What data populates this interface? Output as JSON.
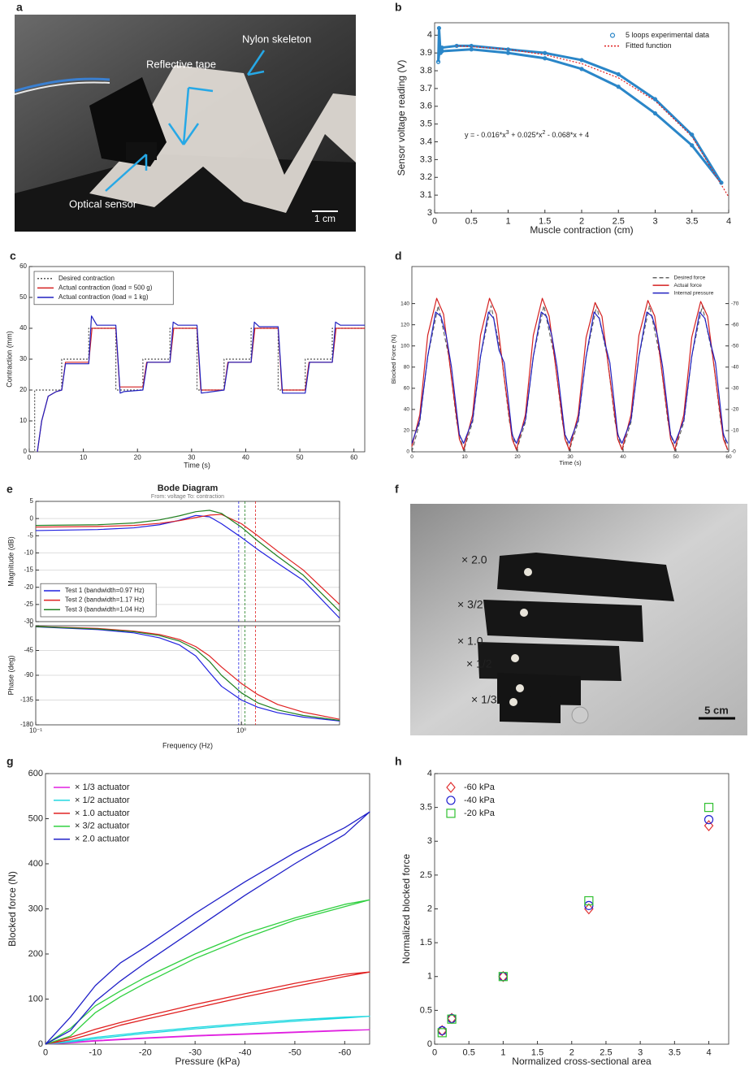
{
  "panels": [
    "a",
    "b",
    "c",
    "d",
    "e",
    "f",
    "g",
    "h"
  ],
  "photo_a": {
    "labels": [
      "Nylon skeleton",
      "Reflective tape",
      "Optical sensor"
    ],
    "scale_bar": "1 cm"
  },
  "photo_f": {
    "labels": [
      "× 2.0",
      "× 3/2",
      "× 1.0",
      "× 1/2",
      "× 1/3"
    ],
    "scale_bar": "5 cm"
  },
  "chart_data": [
    {
      "type": "line",
      "xlabel": "Muscle contraction (cm)",
      "ylabel": "Sensor voltage reading (V)",
      "xlim": [
        0,
        4
      ],
      "ylim": [
        3,
        4.07
      ],
      "xticks": [
        0,
        0.5,
        1,
        1.5,
        2,
        2.5,
        3,
        3.5,
        4
      ],
      "yticks": [
        3,
        3.1,
        3.2,
        3.3,
        3.4,
        3.5,
        3.6,
        3.7,
        3.8,
        3.9,
        4
      ],
      "legend": "top-right",
      "legend_frame": false,
      "annotation": [
        "y = - 0.016*x",
        "3",
        " + 0.025*x",
        "2",
        " - 0.068*x + 4"
      ],
      "series": [
        {
          "name": "5 loops experimental data",
          "color": "#2a86c8",
          "marker": "circle",
          "x": [
            0.05,
            0.06,
            0.08,
            0.1,
            0.3,
            0.5,
            1,
            1.5,
            2,
            2.5,
            3,
            3.5,
            3.9,
            3.5,
            3,
            2.5,
            2,
            1.5,
            1,
            0.5,
            0.1,
            0.07,
            0.05
          ],
          "values": [
            3.85,
            4.04,
            3.9,
            3.93,
            3.94,
            3.94,
            3.92,
            3.9,
            3.86,
            3.78,
            3.64,
            3.44,
            3.17,
            3.38,
            3.56,
            3.71,
            3.81,
            3.87,
            3.9,
            3.92,
            3.91,
            3.93,
            3.85
          ]
        },
        {
          "name": "Fitted function",
          "color": "#e02020",
          "linestyle": "dotted",
          "x": [
            0.3,
            0.5,
            1,
            1.5,
            2,
            2.5,
            3,
            3.5,
            4
          ],
          "values": [
            3.94,
            3.935,
            3.92,
            3.89,
            3.84,
            3.76,
            3.63,
            3.43,
            3.09
          ]
        }
      ]
    },
    {
      "type": "line",
      "xlabel": "Time (s)",
      "ylabel": "Contraction (mm)",
      "xlim": [
        0,
        62
      ],
      "ylim": [
        0,
        60
      ],
      "xticks": [
        0,
        10,
        20,
        30,
        40,
        50,
        60
      ],
      "yticks": [
        0,
        10,
        20,
        30,
        40,
        50,
        60
      ],
      "legend": "top-left",
      "legend_frame": true,
      "series": [
        {
          "name": "Desired contraction",
          "color": "#555555",
          "linestyle": "dotted",
          "x": [
            0,
            1,
            1,
            6,
            6,
            11,
            11,
            16,
            16,
            21,
            21,
            26,
            26,
            31,
            31,
            36,
            36,
            41,
            41,
            46,
            46,
            51,
            51,
            56,
            56,
            62
          ],
          "values": [
            0,
            0,
            20,
            20,
            30,
            30,
            40,
            40,
            20,
            20,
            30,
            30,
            40,
            40,
            20,
            20,
            30,
            30,
            40,
            40,
            20,
            20,
            30,
            30,
            40,
            40
          ]
        },
        {
          "name": "Actual contraction (load = 500 g)",
          "color": "#d42020",
          "x": [
            1.5,
            2.3,
            3.5,
            5,
            6,
            6.7,
            11,
            11.6,
            16,
            16.7,
            21,
            21.7,
            26,
            26.7,
            31,
            31.7,
            36,
            36.7,
            41,
            41.7,
            46,
            46.7,
            51,
            51.7,
            56,
            56.7,
            62
          ],
          "values": [
            0,
            10,
            18,
            19.5,
            20,
            29,
            29,
            40,
            40,
            21,
            21,
            29,
            29,
            40,
            40,
            20,
            20,
            29,
            29,
            40,
            40,
            20,
            20,
            29,
            29,
            40,
            40
          ]
        },
        {
          "name": "Actual contraction (load = 1 kg)",
          "color": "#2020c0",
          "x": [
            1.5,
            2.3,
            3.5,
            5,
            6,
            6.7,
            11,
            11.5,
            12.5,
            16,
            16.8,
            17.5,
            21,
            21.8,
            26,
            26.6,
            27.5,
            31,
            31.8,
            36,
            36.8,
            41,
            41.6,
            42.5,
            46,
            46.8,
            51,
            51.8,
            56,
            56.6,
            57.5,
            62
          ],
          "values": [
            0,
            10,
            18,
            19.5,
            20,
            28.5,
            28.5,
            44,
            41,
            41,
            19,
            19.5,
            20,
            29,
            29,
            42,
            41,
            41,
            19,
            20,
            29,
            29,
            42,
            40.5,
            40.5,
            19,
            19,
            29,
            29,
            42,
            41,
            41
          ]
        }
      ]
    },
    {
      "type": "line",
      "xlabel": "Time (s)",
      "ylabel": "Blocked Force (N)",
      "xlim": [
        0,
        60
      ],
      "ylim": [
        0,
        175
      ],
      "y2lim": [
        0,
        -87.5
      ],
      "xticks": [
        0,
        10,
        20,
        30,
        40,
        50,
        60
      ],
      "yticks": [
        0,
        20,
        40,
        60,
        80,
        100,
        120,
        140
      ],
      "y2ticks": [
        {
          "value": 0,
          "label": "-0"
        },
        -10,
        -20,
        -30,
        -40,
        -50,
        -60,
        -70
      ],
      "legend": "top-right",
      "legend_frame": false,
      "series": [
        {
          "name": "Desired force",
          "color": "#666666",
          "linestyle": "dashed",
          "x": [
            0,
            1.5,
            3,
            5,
            7,
            8.5,
            9.8,
            11.5,
            13,
            15,
            17,
            18.5,
            19.8,
            21.5,
            23,
            25,
            27,
            28.5,
            29.8,
            31.5,
            33,
            35,
            37,
            38.5,
            39.8,
            41.5,
            43,
            45,
            47,
            48.5,
            49.8,
            51.5,
            53,
            55,
            57,
            58.5,
            59.8
          ],
          "values": [
            0,
            28,
            90,
            138,
            90,
            28,
            1,
            28,
            90,
            138,
            90,
            28,
            1,
            28,
            90,
            138,
            90,
            28,
            1,
            28,
            90,
            138,
            90,
            28,
            1,
            28,
            90,
            138,
            90,
            28,
            1,
            28,
            90,
            138,
            90,
            28,
            1
          ]
        },
        {
          "name": "Actual force",
          "color": "#d42020",
          "x": [
            0,
            1.5,
            3,
            4.7,
            6,
            7.5,
            9,
            9.8,
            11.5,
            13,
            14.7,
            16,
            17.5,
            19,
            19.8,
            21.5,
            23,
            24.7,
            26,
            27.5,
            29,
            29.8,
            31.5,
            33,
            34.7,
            36,
            37.5,
            39,
            39.8,
            41.5,
            43,
            44.7,
            46,
            47.5,
            49,
            49.8,
            51.5,
            53,
            54.7,
            56,
            57.5,
            59,
            59.8
          ],
          "values": [
            5,
            35,
            110,
            145,
            130,
            70,
            12,
            2,
            35,
            110,
            145,
            130,
            70,
            12,
            2,
            35,
            110,
            145,
            128,
            70,
            12,
            2,
            35,
            108,
            141,
            128,
            70,
            12,
            2,
            35,
            110,
            143,
            128,
            70,
            12,
            2,
            35,
            108,
            142,
            128,
            70,
            12,
            2
          ]
        },
        {
          "name": "Internal pressure",
          "color": "#2020c0",
          "axis": "y2",
          "x": [
            0,
            1.5,
            3,
            4.5,
            5.5,
            6.5,
            7.5,
            9,
            9.8,
            11.5,
            13,
            14.5,
            15.5,
            16.5,
            17.5,
            19,
            19.8,
            21.5,
            23,
            24.5,
            25.5,
            26.5,
            27.5,
            29,
            29.8,
            31.5,
            33,
            34.5,
            35.5,
            36.5,
            37.5,
            39,
            39.8,
            41.5,
            43,
            44.5,
            45.5,
            46.5,
            47.5,
            49,
            49.8,
            51.5,
            53,
            54.5,
            55.5,
            56.5,
            57.5,
            59,
            59.8
          ],
          "values": [
            -4,
            -15,
            -45,
            -66,
            -64,
            -55,
            -40,
            -8,
            -4,
            -15,
            -45,
            -66,
            -63,
            -48,
            -42,
            -8,
            -4,
            -15,
            -45,
            -66,
            -64,
            -55,
            -40,
            -8,
            -4,
            -15,
            -45,
            -66,
            -63,
            -52,
            -42,
            -8,
            -4,
            -15,
            -45,
            -66,
            -64,
            -55,
            -40,
            -8,
            -4,
            -15,
            -45,
            -66,
            -63,
            -52,
            -42,
            -8,
            -4
          ]
        }
      ]
    },
    {
      "type": "line",
      "title": "Bode Diagram",
      "subtitle": "From: voltage  To: contraction",
      "ylabel": "Magnitude (dB)",
      "xscale": "log",
      "grid": true,
      "xlim": [
        0.1,
        3
      ],
      "ylim": [
        -30,
        5
      ],
      "yticks": [
        -30,
        -25,
        -20,
        -15,
        -10,
        -5,
        0,
        5
      ],
      "legend": "bottom-left",
      "legend_frame": true,
      "x": [
        0.1,
        0.2,
        0.3,
        0.4,
        0.5,
        0.6,
        0.7,
        0.8,
        1,
        1.2,
        1.5,
        2,
        3
      ],
      "series": [
        {
          "name": "Test 1 (bandwidth=0.97 Hz)",
          "color": "#2020e0",
          "bandwidth": 0.97,
          "values": [
            -3.5,
            -3.2,
            -2.7,
            -1.8,
            -0.5,
            0.9,
            0.5,
            -1.5,
            -5.5,
            -9,
            -13,
            -18,
            -29
          ]
        },
        {
          "name": "Test 2 (bandwidth=1.17 Hz)",
          "color": "#e02020",
          "bandwidth": 1.17,
          "values": [
            -2.5,
            -2.3,
            -2,
            -1.4,
            -0.6,
            0.3,
            1,
            1.2,
            -1.5,
            -5,
            -9.5,
            -15,
            -25
          ]
        },
        {
          "name": "Test 3 (bandwidth=1.04 Hz)",
          "color": "#208020",
          "bandwidth": 1.04,
          "values": [
            -2,
            -1.8,
            -1.3,
            -0.4,
            0.8,
            2,
            2.4,
            1.5,
            -2.5,
            -6.5,
            -11,
            -16.5,
            -27
          ]
        }
      ]
    },
    {
      "type": "line",
      "xlabel": "Frequency  (Hz)",
      "ylabel": "Phase (deg)",
      "xscale": "log",
      "grid": true,
      "xlim": [
        0.1,
        3
      ],
      "ylim": [
        -180,
        0
      ],
      "xticks": [
        {
          "value": 0.1,
          "label": "10⁻¹"
        },
        {
          "value": 1,
          "label": "10⁰"
        }
      ],
      "yticks": [
        -180,
        -135,
        -90,
        -45,
        0
      ],
      "x": [
        0.1,
        0.2,
        0.3,
        0.4,
        0.5,
        0.6,
        0.7,
        0.8,
        1,
        1.2,
        1.5,
        2,
        3
      ],
      "series": [
        {
          "color": "#2020e0",
          "values": [
            -2,
            -7,
            -13,
            -22,
            -35,
            -55,
            -85,
            -110,
            -135,
            -148,
            -158,
            -166,
            -173
          ]
        },
        {
          "color": "#e02020",
          "values": [
            -1.5,
            -5,
            -10,
            -16,
            -25,
            -38,
            -55,
            -75,
            -105,
            -125,
            -143,
            -157,
            -170
          ]
        },
        {
          "color": "#208020",
          "values": [
            -1.5,
            -6,
            -11,
            -18,
            -28,
            -43,
            -65,
            -90,
            -122,
            -140,
            -153,
            -163,
            -172
          ]
        }
      ]
    },
    {
      "type": "line",
      "xlabel": "Pressure (kPa)",
      "ylabel": "Blocked force (N)",
      "xlim": [
        0,
        -65
      ],
      "ylim": [
        0,
        600
      ],
      "xticks": [
        0,
        -10,
        -20,
        -30,
        -40,
        -50,
        -60
      ],
      "yticks": [
        0,
        100,
        200,
        300,
        400,
        500,
        600
      ],
      "legend": "top-left",
      "legend_frame": false,
      "x": [
        0,
        -5,
        -10,
        -15,
        -20,
        -30,
        -40,
        -50,
        -60,
        -65,
        -60,
        -50,
        -40,
        -30,
        -20,
        -15,
        -10,
        -5,
        0
      ],
      "series": [
        {
          "name": "× 1/3 actuator",
          "color": "#e020e0",
          "values": [
            0,
            3,
            7,
            10,
            13,
            18,
            22,
            26,
            30,
            32,
            31,
            27,
            23,
            19,
            14,
            11,
            8,
            4,
            0
          ]
        },
        {
          "name": "× 1/2 actuator",
          "color": "#20d8e0",
          "values": [
            0,
            5,
            12,
            18,
            24,
            34,
            43,
            51,
            58,
            62,
            60,
            54,
            46,
            37,
            27,
            21,
            15,
            7,
            0
          ]
        },
        {
          "name": "× 1.0 actuator",
          "color": "#e02020",
          "values": [
            0,
            10,
            25,
            42,
            55,
            80,
            105,
            128,
            150,
            160,
            155,
            135,
            112,
            88,
            62,
            48,
            33,
            15,
            0
          ]
        },
        {
          "name": "× 3/2 actuator",
          "color": "#30d040",
          "values": [
            0,
            18,
            70,
            105,
            135,
            190,
            235,
            275,
            305,
            320,
            310,
            280,
            245,
            200,
            148,
            118,
            85,
            35,
            0
          ]
        },
        {
          "name": "× 2.0 actuator",
          "color": "#2020c8",
          "values": [
            0,
            30,
            95,
            140,
            180,
            255,
            330,
            400,
            465,
            515,
            480,
            425,
            360,
            290,
            215,
            180,
            130,
            60,
            0
          ]
        }
      ]
    },
    {
      "type": "scatter",
      "xlabel": "Normalized cross-sectional area",
      "ylabel": "Normalized blocked force",
      "xlim": [
        0,
        4.29
      ],
      "ylim": [
        0,
        4
      ],
      "xticks": [
        0,
        0.5,
        1,
        1.5,
        2,
        2.5,
        3,
        3.5,
        4
      ],
      "yticks": [
        0,
        0.5,
        1,
        1.5,
        2,
        2.5,
        3,
        3.5,
        4
      ],
      "legend": "top-left",
      "legend_frame": false,
      "x": [
        0.11,
        0.25,
        1,
        2.25,
        4
      ],
      "series": [
        {
          "name": "-60 kPa",
          "color": "#e03030",
          "marker": "diamond",
          "values": [
            0.2,
            0.38,
            1,
            2,
            3.23
          ]
        },
        {
          "name": "-40 kPa",
          "color": "#2020d0",
          "marker": "circle",
          "values": [
            0.2,
            0.38,
            1,
            2.05,
            3.32
          ]
        },
        {
          "name": "-20 kPa",
          "color": "#30c030",
          "marker": "square",
          "values": [
            0.17,
            0.37,
            1,
            2.12,
            3.5
          ]
        }
      ]
    }
  ]
}
